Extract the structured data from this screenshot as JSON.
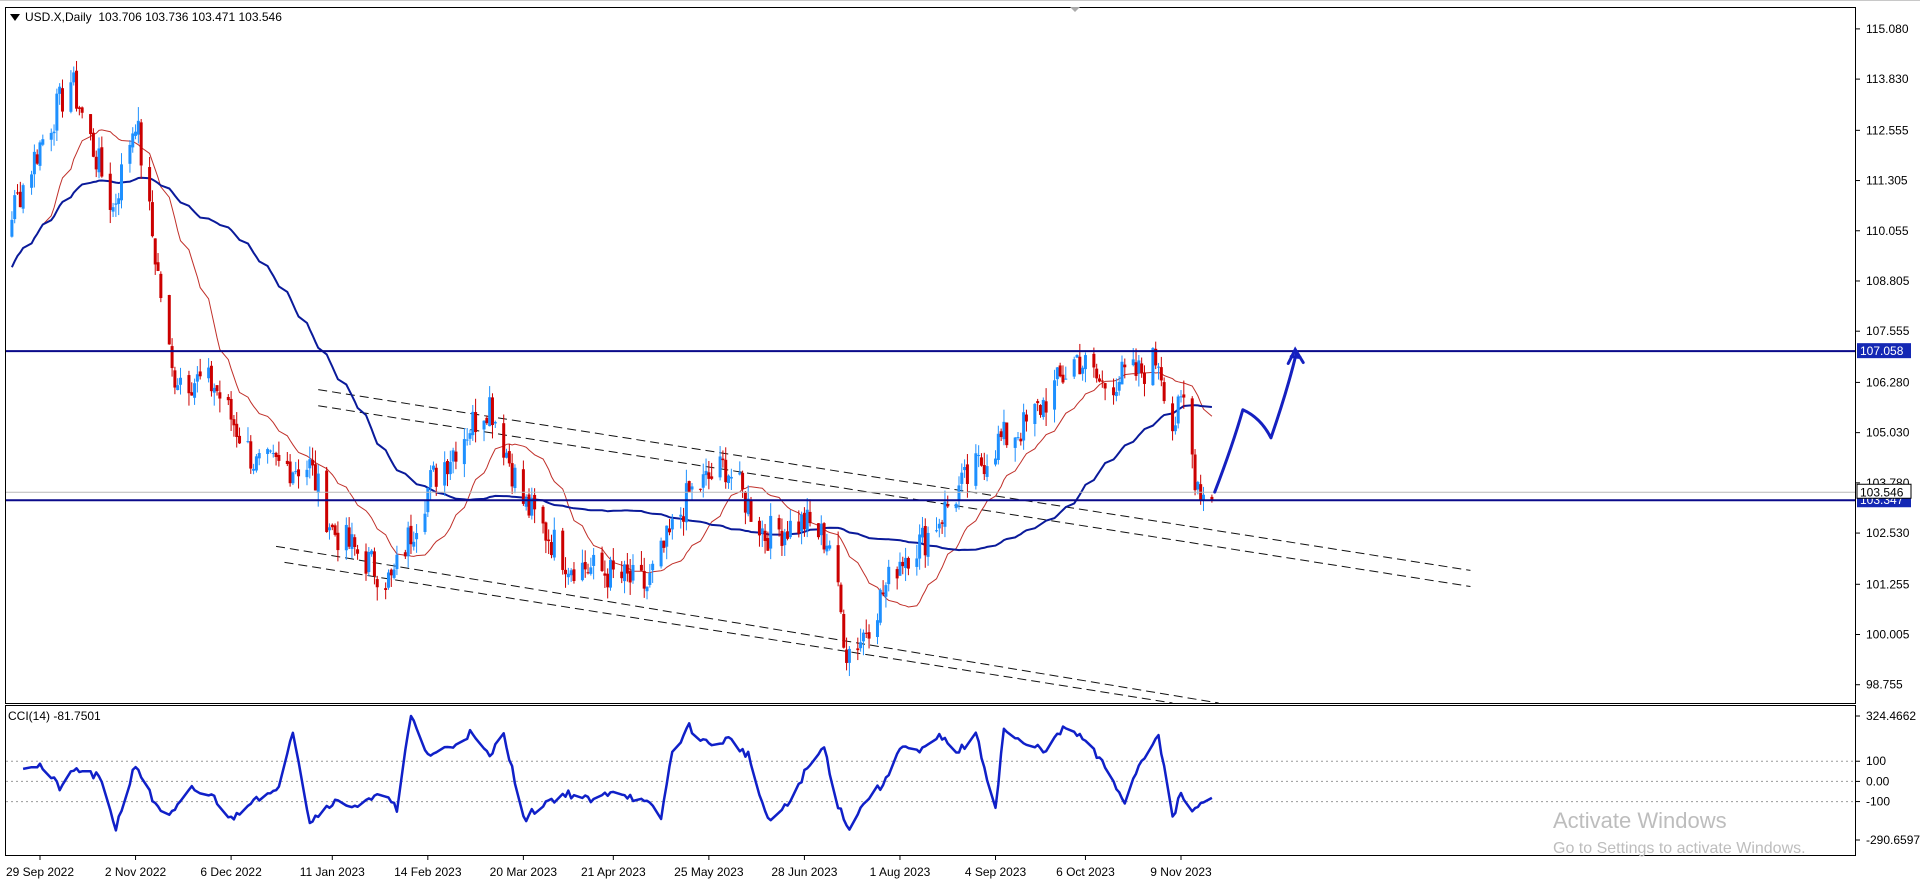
{
  "header": {
    "symbol": "USD.X,Daily",
    "ohlc": "103.706 103.736 103.471 103.546"
  },
  "indicator": {
    "label": "CCI(14) -81.7501"
  },
  "watermark": {
    "line1": "Activate Windows",
    "line2": "Go to Settings to activate Windows."
  },
  "colors": {
    "bull": "#1e90ff",
    "bear": "#cc0000",
    "ma_slow": "#0a1a9a",
    "ma_fast": "#c0302a",
    "level": "#0a0a8a",
    "cci": "#1020c8",
    "hand_drawn": "#1520c0"
  },
  "chart_data": [
    {
      "type": "candlestick",
      "symbol": "USD.X",
      "timeframe": "Daily",
      "x_tick_labels": [
        "29 Sep 2022",
        "2 Nov 2022",
        "6 Dec 2022",
        "11 Jan 2023",
        "14 Feb 2023",
        "20 Mar 2023",
        "21 Apr 2023",
        "25 May 2023",
        "28 Jun 2023",
        "1 Aug 2023",
        "4 Sep 2023",
        "6 Oct 2023",
        "9 Nov 2023"
      ],
      "y_tick_labels": [
        "115.080",
        "113.830",
        "112.555",
        "111.305",
        "110.055",
        "108.805",
        "107.555",
        "106.280",
        "105.030",
        "103.780",
        "102.530",
        "101.255",
        "100.005",
        "98.755"
      ],
      "ylim": [
        98.3,
        115.6
      ],
      "price_anchors": [
        {
          "date": "29 Sep 2022",
          "price": 112.2
        },
        {
          "date": "10 Oct 2022",
          "price": 113.8
        },
        {
          "date": "25 Oct 2022",
          "price": 110.6
        },
        {
          "date": "2 Nov 2022",
          "price": 112.9
        },
        {
          "date": "15 Nov 2022",
          "price": 106.5
        },
        {
          "date": "30 Nov 2022",
          "price": 106.2
        },
        {
          "date": "15 Dec 2022",
          "price": 104.2
        },
        {
          "date": "3 Jan 2023",
          "price": 104.2
        },
        {
          "date": "11 Jan 2023",
          "price": 102.6
        },
        {
          "date": "1 Feb 2023",
          "price": 101.3
        },
        {
          "date": "15 Feb 2023",
          "price": 103.8
        },
        {
          "date": "1 Mar 2023",
          "price": 105.2
        },
        {
          "date": "8 Mar 2023",
          "price": 105.8
        },
        {
          "date": "20 Mar 2023",
          "price": 103.3
        },
        {
          "date": "5 Apr 2023",
          "price": 101.8
        },
        {
          "date": "20 Apr 2023",
          "price": 101.5
        },
        {
          "date": "3 May 2023",
          "price": 101.2
        },
        {
          "date": "18 May 2023",
          "price": 103.5
        },
        {
          "date": "31 May 2023",
          "price": 104.2
        },
        {
          "date": "14 Jun 2023",
          "price": 102.5
        },
        {
          "date": "28 Jun 2023",
          "price": 102.8
        },
        {
          "date": "7 Jul 2023",
          "price": 102.3
        },
        {
          "date": "13 Jul 2023",
          "price": 99.6
        },
        {
          "date": "18 Jul 2023",
          "price": 99.9
        },
        {
          "date": "1 Aug 2023",
          "price": 101.9
        },
        {
          "date": "10 Aug 2023",
          "price": 102.4
        },
        {
          "date": "22 Aug 2023",
          "price": 103.6
        },
        {
          "date": "5 Sep 2023",
          "price": 104.8
        },
        {
          "date": "15 Sep 2023",
          "price": 105.2
        },
        {
          "date": "3 Oct 2023",
          "price": 106.9
        },
        {
          "date": "12 Oct 2023",
          "price": 106.2
        },
        {
          "date": "18 Oct 2023",
          "price": 106.4
        },
        {
          "date": "25 Oct 2023",
          "price": 106.5
        },
        {
          "date": "1 Nov 2023",
          "price": 106.9
        },
        {
          "date": "6 Nov 2023",
          "price": 105.2
        },
        {
          "date": "10 Nov 2023",
          "price": 105.8
        },
        {
          "date": "14 Nov 2023",
          "price": 104.0
        },
        {
          "date": "17 Nov 2023",
          "price": 103.5
        },
        {
          "date": "20 Nov 2023",
          "price": 103.5
        }
      ],
      "horizontal_levels": [
        {
          "price": 107.058,
          "label": "107.058"
        },
        {
          "price": 103.347,
          "label": "103.347"
        }
      ],
      "current_price": {
        "price": 103.546,
        "label": "103.546"
      },
      "moving_averages": [
        {
          "name": "slow MA",
          "color_key": "ma_slow"
        },
        {
          "name": "fast MA",
          "color_key": "ma_fast"
        }
      ],
      "channels": [
        {
          "from": {
            "date": "6 Jan 2023",
            "price": 106.1
          },
          "to": {
            "date": "20 Feb 2024",
            "price": 101.6
          }
        },
        {
          "from": {
            "date": "6 Jan 2023",
            "price": 105.7
          },
          "to": {
            "date": "20 Feb 2024",
            "price": 101.2
          }
        },
        {
          "from": {
            "date": "22 Dec 2022",
            "price": 102.2
          },
          "to": {
            "date": "1 Dec 2023",
            "price": 98.2
          }
        },
        {
          "from": {
            "date": "25 Dec 2022",
            "price": 101.8
          },
          "to": {
            "date": "15 Nov 2023",
            "price": 98.2
          }
        }
      ],
      "hand_drawn_projection": [
        {
          "date": "21 Nov 2023",
          "price": 103.55
        },
        {
          "date": "1 Dec 2023",
          "price": 105.6
        },
        {
          "date": "11 Dec 2023",
          "price": 104.9
        },
        {
          "date": "20 Dec 2023",
          "price": 107.0
        }
      ],
      "grid": false,
      "legend": "none"
    },
    {
      "type": "line",
      "title": "CCI(14) -81.7501",
      "y_tick_labels": [
        "324.4662",
        "100",
        "0.00",
        "-100",
        "-290.6597"
      ],
      "levels": [
        100,
        0,
        -100
      ],
      "ylim": [
        -290.6597,
        324.4662
      ],
      "last_value": -81.7501,
      "values_anchors": [
        {
          "date": "29 Sep 2022",
          "value": 80
        },
        {
          "date": "6 Oct 2022",
          "value": -30
        },
        {
          "date": "12 Oct 2022",
          "value": 60
        },
        {
          "date": "20 Oct 2022",
          "value": 20
        },
        {
          "date": "26 Oct 2022",
          "value": -230
        },
        {
          "date": "2 Nov 2022",
          "value": 90
        },
        {
          "date": "8 Nov 2022",
          "value": -90
        },
        {
          "date": "14 Nov 2022",
          "value": -180
        },
        {
          "date": "22 Nov 2022",
          "value": -40
        },
        {
          "date": "30 Nov 2022",
          "value": -80
        },
        {
          "date": "6 Dec 2022",
          "value": -190
        },
        {
          "date": "14 Dec 2022",
          "value": -80
        },
        {
          "date": "22 Dec 2022",
          "value": -60
        },
        {
          "date": "28 Dec 2022",
          "value": 260
        },
        {
          "date": "3 Jan 2023",
          "value": -200
        },
        {
          "date": "11 Jan 2023",
          "value": -100
        },
        {
          "date": "20 Jan 2023",
          "value": -120
        },
        {
          "date": "31 Jan 2023",
          "value": -60
        },
        {
          "date": "3 Feb 2023",
          "value": -150
        },
        {
          "date": "8 Feb 2023",
          "value": 330
        },
        {
          "date": "14 Feb 2023",
          "value": 130
        },
        {
          "date": "22 Feb 2023",
          "value": 170
        },
        {
          "date": "1 Mar 2023",
          "value": 240
        },
        {
          "date": "8 Mar 2023",
          "value": 120
        },
        {
          "date": "13 Mar 2023",
          "value": 250
        },
        {
          "date": "20 Mar 2023",
          "value": -190
        },
        {
          "date": "28 Mar 2023",
          "value": -100
        },
        {
          "date": "5 Apr 2023",
          "value": -60
        },
        {
          "date": "14 Apr 2023",
          "value": -100
        },
        {
          "date": "21 Apr 2023",
          "value": -40
        },
        {
          "date": "28 Apr 2023",
          "value": -80
        },
        {
          "date": "4 May 2023",
          "value": -120
        },
        {
          "date": "8 May 2023",
          "value": -180
        },
        {
          "date": "12 May 2023",
          "value": 150
        },
        {
          "date": "18 May 2023",
          "value": 270
        },
        {
          "date": "25 May 2023",
          "value": 180
        },
        {
          "date": "1 Jun 2023",
          "value": 210
        },
        {
          "date": "8 Jun 2023",
          "value": 130
        },
        {
          "date": "15 Jun 2023",
          "value": -200
        },
        {
          "date": "22 Jun 2023",
          "value": -120
        },
        {
          "date": "28 Jun 2023",
          "value": 40
        },
        {
          "date": "5 Jul 2023",
          "value": 170
        },
        {
          "date": "10 Jul 2023",
          "value": -120
        },
        {
          "date": "14 Jul 2023",
          "value": -230
        },
        {
          "date": "20 Jul 2023",
          "value": -90
        },
        {
          "date": "27 Jul 2023",
          "value": 0
        },
        {
          "date": "1 Aug 2023",
          "value": 180
        },
        {
          "date": "8 Aug 2023",
          "value": 140
        },
        {
          "date": "15 Aug 2023",
          "value": 220
        },
        {
          "date": "22 Aug 2023",
          "value": 150
        },
        {
          "date": "28 Aug 2023",
          "value": 230
        },
        {
          "date": "4 Sep 2023",
          "value": -130
        },
        {
          "date": "7 Sep 2023",
          "value": 260
        },
        {
          "date": "14 Sep 2023",
          "value": 180
        },
        {
          "date": "22 Sep 2023",
          "value": 160
        },
        {
          "date": "29 Sep 2023",
          "value": 270
        },
        {
          "date": "6 Oct 2023",
          "value": 200
        },
        {
          "date": "13 Oct 2023",
          "value": 70
        },
        {
          "date": "20 Oct 2023",
          "value": -100
        },
        {
          "date": "25 Oct 2023",
          "value": 80
        },
        {
          "date": "1 Nov 2023",
          "value": 240
        },
        {
          "date": "6 Nov 2023",
          "value": -190
        },
        {
          "date": "9 Nov 2023",
          "value": -60
        },
        {
          "date": "13 Nov 2023",
          "value": -150
        },
        {
          "date": "16 Nov 2023",
          "value": -120
        },
        {
          "date": "20 Nov 2023",
          "value": -81.7501
        }
      ]
    }
  ]
}
